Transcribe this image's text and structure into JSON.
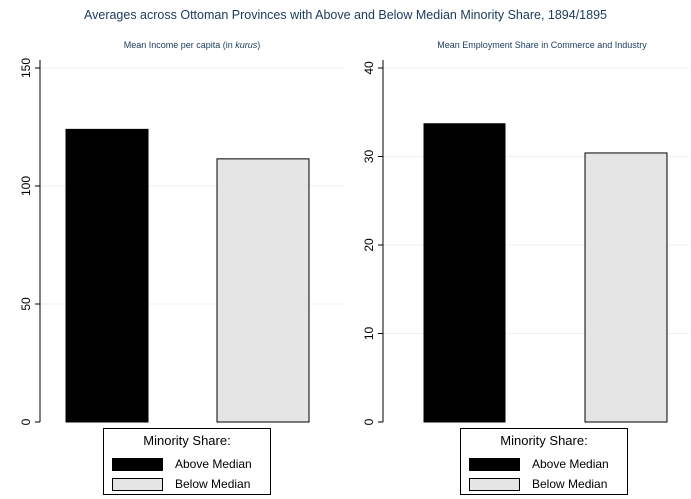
{
  "title": "Averages across Ottoman Provinces with Above and Below Median Minority Share, 1894/1895",
  "colors": {
    "above": "#000000",
    "below": "#e5e5e5",
    "grid": "#eaf0f4",
    "text": "#1a3a5c"
  },
  "legend": {
    "title": "Minority Share:",
    "entries": [
      "Above Median",
      "Below Median"
    ]
  },
  "chart_data": [
    {
      "type": "bar",
      "title_prefix": "Mean Income per capita (in ",
      "title_italic": "kurus",
      "title_suffix": ")",
      "series": [
        {
          "name": "Above Median",
          "values": [
            124
          ]
        },
        {
          "name": "Below Median",
          "values": [
            111.5
          ]
        }
      ],
      "ylim": [
        0,
        150
      ],
      "yticks": [
        0,
        50,
        100,
        150
      ],
      "ytick_labels": [
        "0",
        "50",
        "100",
        "150"
      ],
      "grid": true,
      "legend_position": "bottom"
    },
    {
      "type": "bar",
      "title_prefix": "Mean Employment Share in Commerce and Industry",
      "title_italic": "",
      "title_suffix": "",
      "series": [
        {
          "name": "Above Median",
          "values": [
            33.7
          ]
        },
        {
          "name": "Below Median",
          "values": [
            30.4
          ]
        }
      ],
      "ylim": [
        0,
        40
      ],
      "yticks": [
        0,
        10,
        20,
        30,
        40
      ],
      "ytick_labels": [
        "0",
        "10",
        "20",
        "30",
        "40"
      ],
      "grid": true,
      "legend_position": "bottom"
    }
  ]
}
